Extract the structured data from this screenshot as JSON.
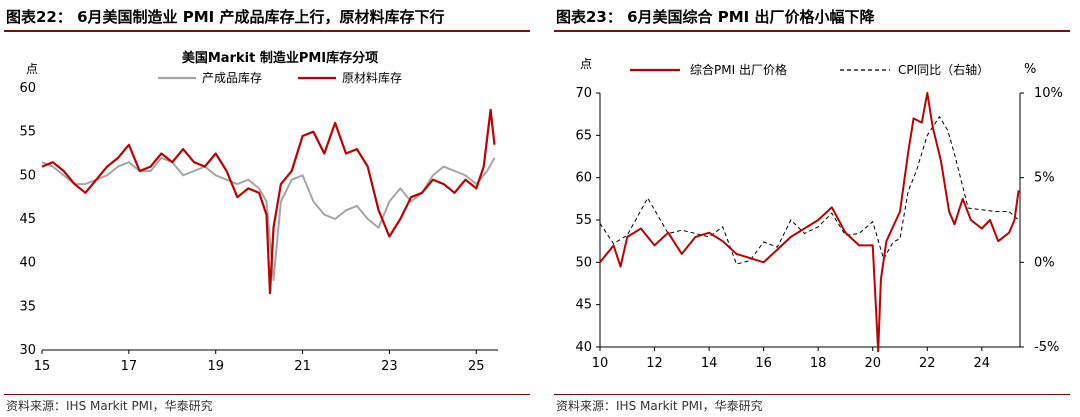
{
  "panels": [
    {
      "caption": "图表22：  6月美国制造业 PMI 产成品库存上行，原材料库存下行",
      "source": "资料来源：IHS Markit PMI，华泰研究"
    },
    {
      "caption": "图表23：  6月美国综合 PMI 出厂价格小幅下降",
      "source": "资料来源：IHS Markit PMI，华泰研究"
    }
  ],
  "colors": {
    "gray": "#a6a6a6",
    "red": "#c00000",
    "black": "#000000",
    "rule": "#7f0d12"
  },
  "chart_data": [
    {
      "type": "line",
      "title": "美国Markit 制造业PMI库存分项",
      "ylabel": "点",
      "ylim": [
        30,
        60
      ],
      "yticks": [
        30,
        35,
        40,
        45,
        50,
        55,
        60
      ],
      "xlim": [
        2015.0,
        2025.5
      ],
      "xticks": [
        2015,
        2017,
        2019,
        2021,
        2023,
        2025
      ],
      "xtick_labels": [
        "15",
        "17",
        "19",
        "21",
        "23",
        "25"
      ],
      "series": [
        {
          "name": "产成品库存",
          "color": "#a6a6a6",
          "x": [
            2015.0,
            2015.25,
            2015.5,
            2015.75,
            2016.0,
            2016.25,
            2016.5,
            2016.75,
            2017.0,
            2017.25,
            2017.5,
            2017.75,
            2018.0,
            2018.25,
            2018.5,
            2018.75,
            2019.0,
            2019.25,
            2019.5,
            2019.75,
            2020.0,
            2020.17,
            2020.33,
            2020.5,
            2020.75,
            2021.0,
            2021.25,
            2021.5,
            2021.75,
            2022.0,
            2022.25,
            2022.5,
            2022.75,
            2023.0,
            2023.25,
            2023.5,
            2023.75,
            2024.0,
            2024.25,
            2024.5,
            2024.75,
            2025.0,
            2025.25,
            2025.42
          ],
          "y": [
            51.5,
            51.0,
            50.0,
            49.0,
            49.0,
            49.5,
            50.0,
            51.0,
            51.5,
            50.5,
            50.5,
            52.0,
            51.5,
            50.0,
            50.5,
            51.0,
            50.0,
            49.5,
            49.0,
            49.5,
            48.5,
            47.0,
            38.0,
            47.0,
            49.5,
            50.0,
            47.0,
            45.5,
            45.0,
            46.0,
            46.5,
            45.0,
            44.0,
            47.0,
            48.5,
            47.0,
            48.0,
            50.0,
            51.0,
            50.5,
            50.0,
            49.0,
            50.5,
            52.0
          ]
        },
        {
          "name": "原材料库存",
          "color": "#c00000",
          "x": [
            2015.0,
            2015.25,
            2015.5,
            2015.75,
            2016.0,
            2016.25,
            2016.5,
            2016.75,
            2017.0,
            2017.25,
            2017.5,
            2017.75,
            2018.0,
            2018.25,
            2018.5,
            2018.75,
            2019.0,
            2019.25,
            2019.5,
            2019.75,
            2020.0,
            2020.17,
            2020.25,
            2020.33,
            2020.5,
            2020.75,
            2021.0,
            2021.25,
            2021.5,
            2021.75,
            2022.0,
            2022.25,
            2022.5,
            2022.75,
            2023.0,
            2023.25,
            2023.5,
            2023.75,
            2024.0,
            2024.25,
            2024.5,
            2024.75,
            2025.0,
            2025.17,
            2025.33,
            2025.42
          ],
          "y": [
            51.0,
            51.5,
            50.5,
            49.0,
            48.0,
            49.5,
            51.0,
            52.0,
            53.5,
            50.5,
            51.0,
            52.5,
            51.5,
            53.0,
            51.5,
            51.0,
            52.5,
            50.5,
            47.5,
            48.5,
            48.0,
            45.5,
            36.5,
            44.0,
            49.0,
            50.5,
            54.5,
            55.0,
            52.5,
            56.0,
            52.5,
            53.0,
            51.0,
            46.0,
            43.0,
            45.0,
            47.5,
            48.0,
            49.5,
            49.0,
            48.0,
            49.5,
            48.5,
            51.0,
            57.5,
            53.5
          ]
        }
      ]
    },
    {
      "type": "line",
      "ylabel": "点",
      "y2label": "%",
      "ylim": [
        40,
        70
      ],
      "yticks": [
        40,
        45,
        50,
        55,
        60,
        65,
        70
      ],
      "y2lim": [
        -5,
        10
      ],
      "y2ticks": [
        -5,
        0,
        5,
        10
      ],
      "y2tick_labels": [
        "-5%",
        "0%",
        "5%",
        "10%"
      ],
      "xlim": [
        2010.0,
        2025.4
      ],
      "xticks": [
        2010,
        2012,
        2014,
        2016,
        2018,
        2020,
        2022,
        2024
      ],
      "xtick_labels": [
        "10",
        "12",
        "14",
        "16",
        "18",
        "20",
        "22",
        "24"
      ],
      "series": [
        {
          "name": "综合PMI 出厂价格",
          "color": "#c00000",
          "axis": "left",
          "x": [
            2010.0,
            2010.5,
            2010.75,
            2011.0,
            2011.5,
            2012.0,
            2012.5,
            2013.0,
            2013.5,
            2014.0,
            2014.5,
            2015.0,
            2015.5,
            2016.0,
            2016.5,
            2017.0,
            2017.5,
            2018.0,
            2018.5,
            2019.0,
            2019.5,
            2020.0,
            2020.2,
            2020.3,
            2020.5,
            2021.0,
            2021.3,
            2021.5,
            2021.8,
            2022.0,
            2022.2,
            2022.5,
            2022.8,
            2023.0,
            2023.3,
            2023.6,
            2024.0,
            2024.3,
            2024.6,
            2025.0,
            2025.2,
            2025.35
          ],
          "y": [
            50.0,
            52.0,
            49.5,
            53.0,
            54.0,
            52.0,
            53.5,
            51.0,
            53.0,
            53.5,
            52.5,
            51.0,
            50.5,
            50.0,
            51.5,
            53.0,
            54.0,
            55.0,
            56.5,
            53.5,
            52.0,
            52.0,
            39.5,
            48.0,
            52.5,
            56.0,
            63.0,
            67.0,
            66.5,
            70.0,
            66.0,
            62.0,
            56.0,
            54.5,
            57.5,
            55.0,
            54.0,
            55.0,
            52.5,
            53.5,
            55.0,
            58.5
          ]
        },
        {
          "name": "CPI同比（右轴）",
          "color": "#000000",
          "axis": "right",
          "x": [
            2010.0,
            2010.5,
            2011.0,
            2011.75,
            2012.5,
            2013.0,
            2013.5,
            2014.0,
            2014.5,
            2015.0,
            2015.5,
            2016.0,
            2016.5,
            2017.0,
            2017.5,
            2018.0,
            2018.5,
            2019.0,
            2019.5,
            2020.0,
            2020.4,
            2020.75,
            2021.0,
            2021.3,
            2021.6,
            2022.0,
            2022.45,
            2022.75,
            2023.0,
            2023.5,
            2024.0,
            2024.5,
            2025.0,
            2025.35
          ],
          "y": [
            2.3,
            1.1,
            1.6,
            3.8,
            1.7,
            1.9,
            1.7,
            1.5,
            2.1,
            -0.1,
            0.1,
            1.2,
            0.9,
            2.5,
            1.7,
            2.1,
            2.9,
            1.6,
            1.7,
            2.4,
            0.2,
            1.2,
            1.4,
            4.2,
            5.4,
            7.5,
            8.6,
            7.8,
            6.4,
            3.2,
            3.1,
            3.0,
            3.0,
            2.5
          ]
        }
      ]
    }
  ]
}
